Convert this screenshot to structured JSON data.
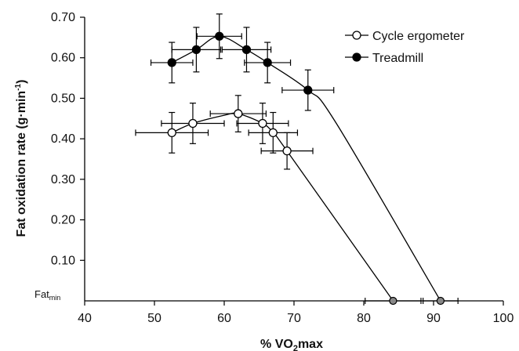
{
  "chart_data": {
    "type": "scatter",
    "xlabel_parts": [
      "% VO",
      "2",
      "max"
    ],
    "ylabel_parts": [
      "Fat oxidation rate (g",
      "·",
      "min",
      "-1",
      ")"
    ],
    "xlim": [
      40,
      100
    ],
    "ylim": [
      0,
      0.7
    ],
    "xticks": [
      40,
      50,
      60,
      70,
      80,
      90,
      100
    ],
    "yticks": [
      0.1,
      0.2,
      0.3,
      0.4,
      0.5,
      0.6,
      0.7
    ],
    "ytick_labels": [
      "0.10",
      "0.20",
      "0.30",
      "0.40",
      "0.50",
      "0.60",
      "0.70"
    ],
    "fat_min_label": {
      "main": "Fat",
      "sub": "min"
    },
    "grid": false,
    "legend_position": "top-right",
    "series": [
      {
        "name": "Cycle ergometer",
        "marker": "open-circle",
        "points": [
          {
            "x": 52.5,
            "y": 0.415,
            "xerr": 5.2,
            "yerr": 0.05
          },
          {
            "x": 55.5,
            "y": 0.438,
            "xerr": 4.5,
            "yerr": 0.05
          },
          {
            "x": 62.0,
            "y": 0.462,
            "xerr": 4.0,
            "yerr": 0.045
          },
          {
            "x": 65.5,
            "y": 0.438,
            "xerr": 3.7,
            "yerr": 0.05
          },
          {
            "x": 67.0,
            "y": 0.415,
            "xerr": 3.5,
            "yerr": 0.05
          },
          {
            "x": 69.0,
            "y": 0.37,
            "xerr": 3.7,
            "yerr": 0.045
          }
        ],
        "curve": [
          [
            52.5,
            0.415
          ],
          [
            55.5,
            0.438
          ],
          [
            60,
            0.458
          ],
          [
            62.0,
            0.462
          ],
          [
            65.5,
            0.438
          ],
          [
            67.0,
            0.415
          ],
          [
            69.0,
            0.37
          ],
          [
            84.2,
            0.0
          ]
        ],
        "endpoint": {
          "x": 84.2,
          "y": 0.0,
          "xerr": 4.0
        }
      },
      {
        "name": "Treadmill",
        "marker": "filled-circle",
        "points": [
          {
            "x": 52.5,
            "y": 0.588,
            "xerr": 3.0,
            "yerr": 0.05
          },
          {
            "x": 56.0,
            "y": 0.62,
            "xerr": 3.5,
            "yerr": 0.055
          },
          {
            "x": 59.3,
            "y": 0.653,
            "xerr": 3.2,
            "yerr": 0.055
          },
          {
            "x": 63.2,
            "y": 0.62,
            "xerr": 3.5,
            "yerr": 0.055
          },
          {
            "x": 66.2,
            "y": 0.588,
            "xerr": 3.3,
            "yerr": 0.05
          },
          {
            "x": 72.0,
            "y": 0.52,
            "xerr": 3.7,
            "yerr": 0.05
          }
        ],
        "curve": [
          [
            52.5,
            0.588
          ],
          [
            56.0,
            0.62
          ],
          [
            59.3,
            0.653
          ],
          [
            63.2,
            0.62
          ],
          [
            66.2,
            0.588
          ],
          [
            72.0,
            0.52
          ],
          [
            76.0,
            0.44
          ],
          [
            91.0,
            0.0
          ]
        ],
        "endpoint": {
          "x": 91.0,
          "y": 0.0,
          "xerr": 2.5
        }
      }
    ]
  }
}
